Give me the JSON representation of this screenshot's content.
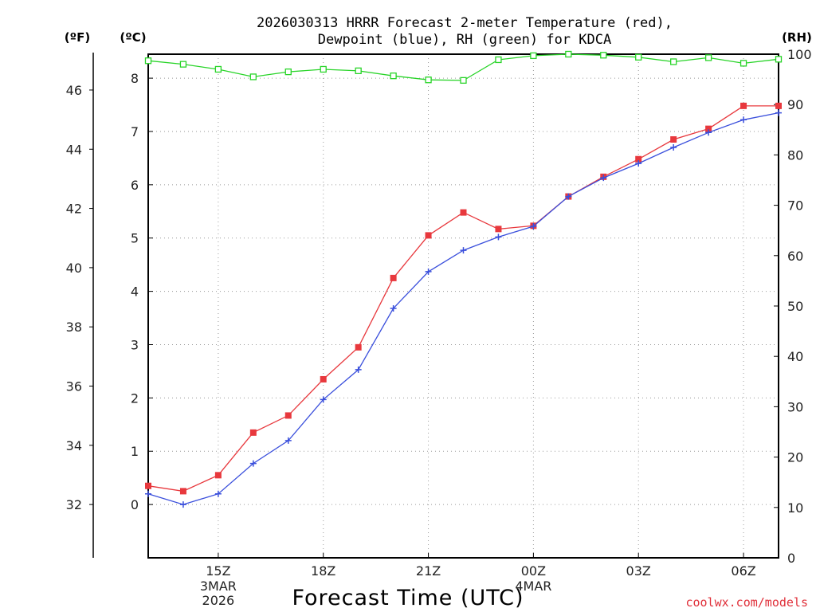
{
  "chart_data": {
    "type": "line",
    "title_lines": [
      "2026030313 HRRR Forecast 2-meter Temperature (red),",
      "Dewpoint (blue), RH (green) for KDCA"
    ],
    "unit_labels": {
      "fahrenheit": "(ºF)",
      "celsius": "(ºC)",
      "rh": "(RH)"
    },
    "xlabel": "Forecast Time (UTC)",
    "credit": "coolwx.com/models",
    "x_hours": [
      13,
      14,
      15,
      16,
      17,
      18,
      19,
      20,
      21,
      22,
      23,
      24,
      25,
      26,
      27,
      28,
      29,
      30,
      31
    ],
    "x_range": [
      13,
      31
    ],
    "x_ticks": [
      {
        "hour": 15,
        "label": "15Z",
        "sub": [
          "3MAR",
          "2026"
        ]
      },
      {
        "hour": 18,
        "label": "18Z",
        "sub": []
      },
      {
        "hour": 21,
        "label": "21Z",
        "sub": []
      },
      {
        "hour": 24,
        "label": "00Z",
        "sub": [
          "4MAR"
        ]
      },
      {
        "hour": 27,
        "label": "03Z",
        "sub": []
      },
      {
        "hour": 30,
        "label": "06Z",
        "sub": []
      }
    ],
    "celsius_range": [
      -1,
      8.45
    ],
    "celsius_ticks": [
      0,
      1,
      2,
      3,
      4,
      5,
      6,
      7,
      8
    ],
    "fahrenheit_ticks": [
      32,
      34,
      36,
      38,
      40,
      42,
      44,
      46
    ],
    "rh_range": [
      0,
      100
    ],
    "rh_ticks": [
      0,
      10,
      20,
      30,
      40,
      50,
      60,
      70,
      80,
      90,
      100
    ],
    "series": [
      {
        "name": "Temperature",
        "axis": "celsius",
        "color": "#e8383d",
        "marker": "square",
        "values": [
          0.35,
          0.25,
          0.55,
          1.35,
          1.67,
          2.35,
          2.95,
          4.25,
          5.05,
          5.48,
          5.17,
          5.23,
          5.78,
          6.15,
          6.48,
          6.85,
          7.05,
          7.48,
          7.48
        ]
      },
      {
        "name": "Dewpoint",
        "axis": "celsius",
        "color": "#3a4fdc",
        "marker": "plus",
        "values": [
          0.2,
          0.0,
          0.2,
          0.77,
          1.2,
          1.97,
          2.53,
          3.68,
          4.37,
          4.77,
          5.02,
          5.22,
          5.78,
          6.13,
          6.4,
          6.7,
          6.98,
          7.22,
          7.35
        ]
      },
      {
        "name": "RH",
        "axis": "rh",
        "color": "#28d428",
        "marker": "open-square",
        "values": [
          98.7,
          98.0,
          97.0,
          95.5,
          96.5,
          97.0,
          96.7,
          95.7,
          94.9,
          94.8,
          98.9,
          99.7,
          100.0,
          99.8,
          99.4,
          98.5,
          99.3,
          98.2,
          99.0
        ]
      }
    ]
  }
}
